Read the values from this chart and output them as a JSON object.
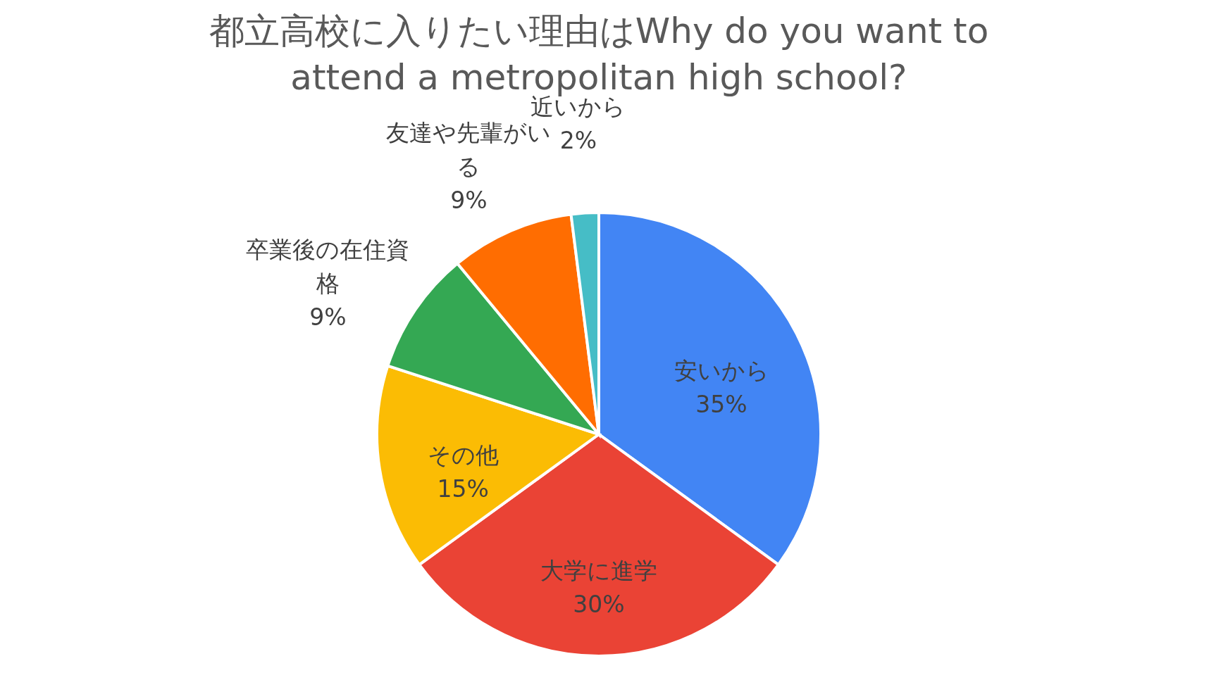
{
  "chart_data": {
    "type": "pie",
    "title": [
      "都立高校に入りたい理由はWhy do you want to",
      "attend a metropolitan high school?"
    ],
    "categories": [
      "安いから",
      "大学に進学",
      "その他",
      "卒業後の在住資格",
      "友達や先輩がいる",
      "近いから"
    ],
    "values": [
      35,
      30,
      15,
      9,
      9,
      2
    ],
    "value_labels": [
      "35%",
      "30%",
      "15%",
      "9%",
      "9%",
      "2%"
    ],
    "colors": [
      "#4285f4",
      "#ea4335",
      "#fbbc04",
      "#34a853",
      "#ff6d01",
      "#46bdc6"
    ],
    "legend": false
  }
}
